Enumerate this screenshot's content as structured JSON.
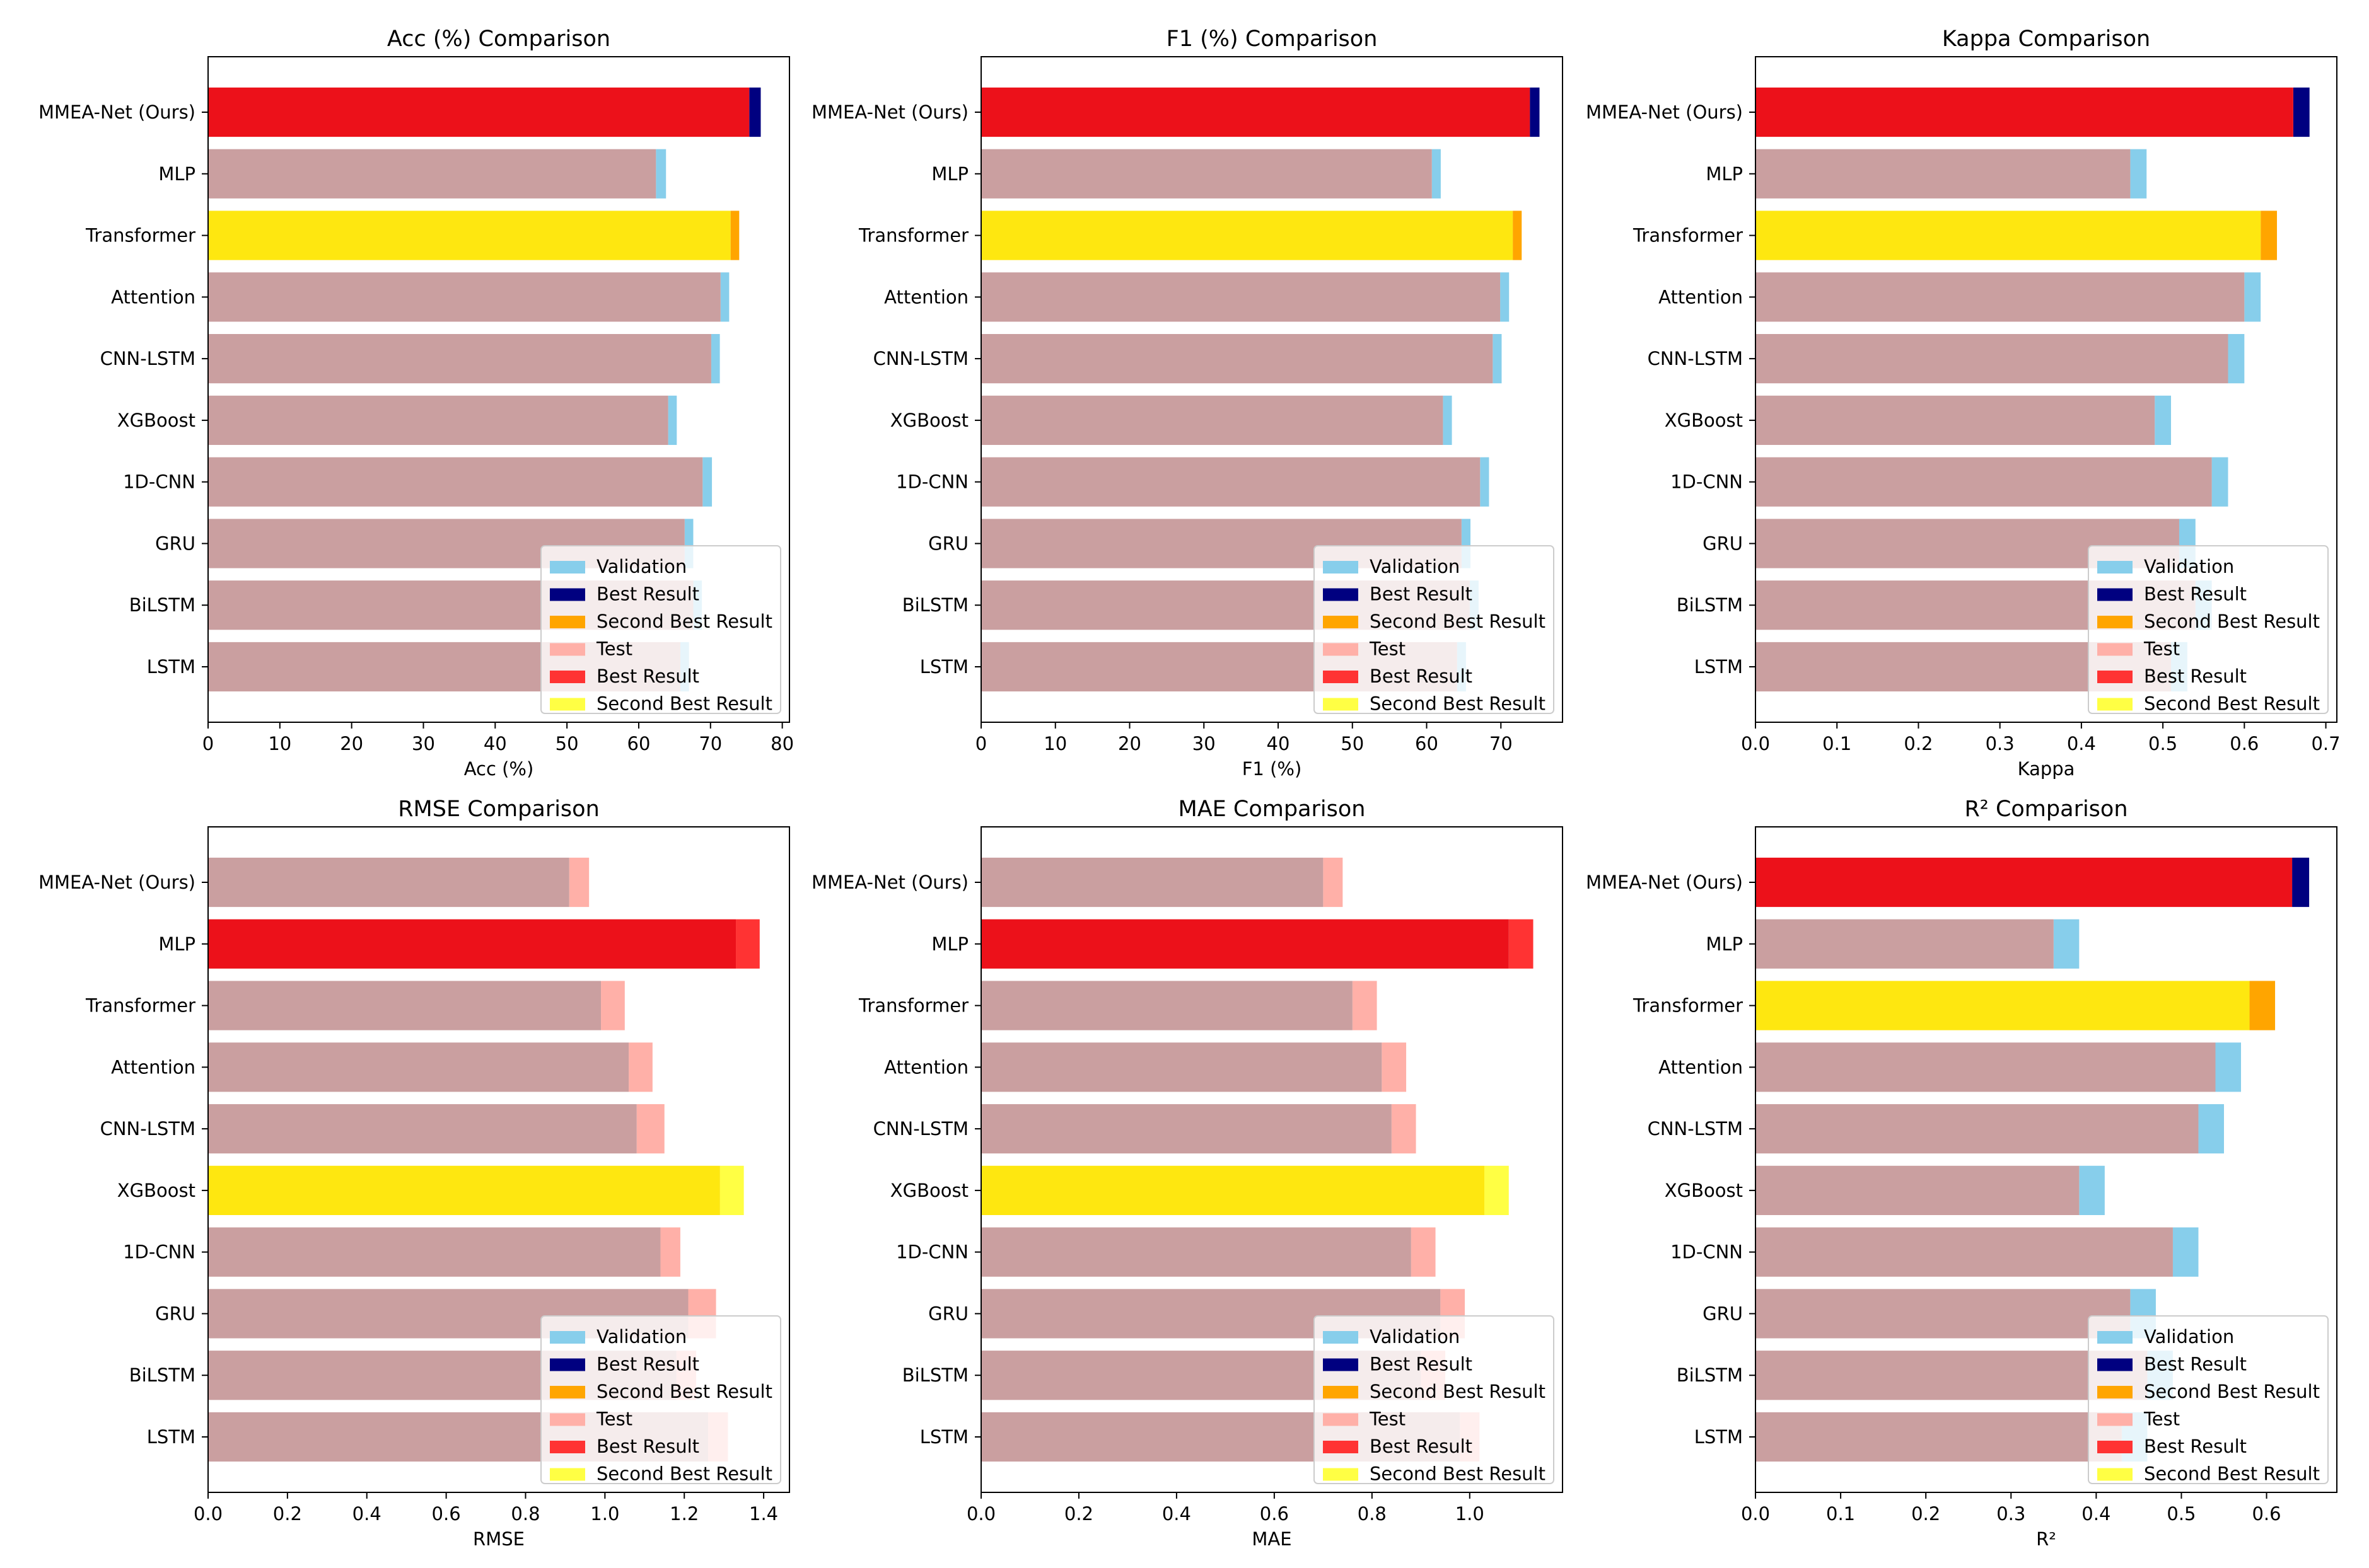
{
  "colors": {
    "validation": "#87CEEB",
    "val_best": "#000080",
    "val_second": "#FFA500",
    "test": "#FFB0A8",
    "test_best": "#FF3333",
    "test_second": "#FFFF44",
    "base": "#CA9FA0",
    "best_mix": "#EC111A",
    "second_mix": "#FEE710"
  },
  "legend": {
    "entries": [
      "Validation",
      "Best Result",
      "Second Best Result",
      "Test",
      "Best Result",
      "Second Best Result"
    ]
  },
  "chart_data": [
    {
      "type": "bar",
      "orientation": "horizontal",
      "title": "Acc (%) Comparison",
      "xlabel": "Acc (%)",
      "xlim": [
        0,
        81
      ],
      "xticks": [
        "0",
        "10",
        "20",
        "30",
        "40",
        "50",
        "60",
        "70",
        "80"
      ],
      "xtick_values": [
        0,
        10,
        20,
        30,
        40,
        50,
        60,
        70,
        80
      ],
      "legend_position": "lower-right",
      "categories": [
        "MMEA-Net (Ours)",
        "MLP",
        "Transformer",
        "Attention",
        "CNN-LSTM",
        "XGBoost",
        "1D-CNN",
        "GRU",
        "BiLSTM",
        "LSTM"
      ],
      "series": [
        {
          "name": "Validation",
          "values": [
            77.0,
            63.8,
            74.0,
            72.6,
            71.3,
            65.3,
            70.2,
            67.6,
            68.8,
            67.0
          ],
          "highlight": [
            "best",
            "",
            "second",
            "",
            "",
            "",
            "",
            "",
            "",
            ""
          ]
        },
        {
          "name": "Test",
          "values": [
            75.4,
            62.4,
            72.8,
            71.4,
            70.1,
            64.1,
            68.9,
            66.4,
            67.6,
            65.8
          ],
          "highlight": [
            "best",
            "",
            "second",
            "",
            "",
            "",
            "",
            "",
            "",
            ""
          ]
        }
      ]
    },
    {
      "type": "bar",
      "orientation": "horizontal",
      "title": "F1 (%) Comparison",
      "xlabel": "F1 (%)",
      "xlim": [
        0,
        78.3
      ],
      "xticks": [
        "0",
        "10",
        "20",
        "30",
        "40",
        "50",
        "60",
        "70"
      ],
      "xtick_values": [
        0,
        10,
        20,
        30,
        40,
        50,
        60,
        70
      ],
      "legend_position": "lower-right",
      "categories": [
        "MMEA-Net (Ours)",
        "MLP",
        "Transformer",
        "Attention",
        "CNN-LSTM",
        "XGBoost",
        "1D-CNN",
        "GRU",
        "BiLSTM",
        "LSTM"
      ],
      "series": [
        {
          "name": "Validation",
          "values": [
            75.2,
            61.9,
            72.8,
            71.1,
            70.1,
            63.4,
            68.4,
            65.9,
            67.0,
            65.3
          ],
          "highlight": [
            "best",
            "",
            "second",
            "",
            "",
            "",
            "",
            "",
            "",
            ""
          ]
        },
        {
          "name": "Test",
          "values": [
            73.9,
            60.7,
            71.6,
            69.9,
            68.9,
            62.2,
            67.2,
            64.7,
            65.8,
            64.1
          ],
          "highlight": [
            "best",
            "",
            "second",
            "",
            "",
            "",
            "",
            "",
            "",
            ""
          ]
        }
      ]
    },
    {
      "type": "bar",
      "orientation": "horizontal",
      "title": "Kappa Comparison",
      "xlabel": "Kappa",
      "xlim": [
        0,
        0.7135
      ],
      "xticks": [
        "0.0",
        "0.1",
        "0.2",
        "0.3",
        "0.4",
        "0.5",
        "0.6",
        "0.7"
      ],
      "xtick_values": [
        0,
        0.1,
        0.2,
        0.3,
        0.4,
        0.5,
        0.6,
        0.7
      ],
      "legend_position": "lower-right",
      "categories": [
        "MMEA-Net (Ours)",
        "MLP",
        "Transformer",
        "Attention",
        "CNN-LSTM",
        "XGBoost",
        "1D-CNN",
        "GRU",
        "BiLSTM",
        "LSTM"
      ],
      "series": [
        {
          "name": "Validation",
          "values": [
            0.68,
            0.48,
            0.64,
            0.62,
            0.6,
            0.51,
            0.58,
            0.54,
            0.56,
            0.53
          ],
          "highlight": [
            "best",
            "",
            "second",
            "",
            "",
            "",
            "",
            "",
            "",
            ""
          ]
        },
        {
          "name": "Test",
          "values": [
            0.66,
            0.46,
            0.62,
            0.6,
            0.58,
            0.49,
            0.56,
            0.52,
            0.54,
            0.51
          ],
          "highlight": [
            "best",
            "",
            "second",
            "",
            "",
            "",
            "",
            "",
            "",
            ""
          ]
        }
      ]
    },
    {
      "type": "bar",
      "orientation": "horizontal",
      "title": "RMSE Comparison",
      "xlabel": "RMSE",
      "xlim": [
        0,
        1.465
      ],
      "xticks": [
        "0.0",
        "0.2",
        "0.4",
        "0.6",
        "0.8",
        "1.0",
        "1.2",
        "1.4"
      ],
      "xtick_values": [
        0,
        0.2,
        0.4,
        0.6,
        0.8,
        1.0,
        1.2,
        1.4
      ],
      "legend_position": "lower-right",
      "categories": [
        "MMEA-Net (Ours)",
        "MLP",
        "Transformer",
        "Attention",
        "CNN-LSTM",
        "XGBoost",
        "1D-CNN",
        "GRU",
        "BiLSTM",
        "LSTM"
      ],
      "series": [
        {
          "name": "Validation",
          "values": [
            0.91,
            1.33,
            0.99,
            1.06,
            1.08,
            1.29,
            1.14,
            1.21,
            1.18,
            1.26
          ],
          "highlight": [
            "",
            "best",
            "",
            "",
            "",
            "second",
            "",
            "",
            "",
            ""
          ]
        },
        {
          "name": "Test",
          "values": [
            0.96,
            1.39,
            1.05,
            1.12,
            1.15,
            1.35,
            1.19,
            1.28,
            1.23,
            1.31
          ],
          "highlight": [
            "",
            "best",
            "",
            "",
            "",
            "second",
            "",
            "",
            "",
            ""
          ]
        }
      ]
    },
    {
      "type": "bar",
      "orientation": "horizontal",
      "title": "MAE Comparison",
      "xlabel": "MAE",
      "xlim": [
        0,
        1.19
      ],
      "xticks": [
        "0.0",
        "0.2",
        "0.4",
        "0.6",
        "0.8",
        "1.0"
      ],
      "xtick_values": [
        0,
        0.2,
        0.4,
        0.6,
        0.8,
        1.0
      ],
      "legend_position": "lower-right",
      "categories": [
        "MMEA-Net (Ours)",
        "MLP",
        "Transformer",
        "Attention",
        "CNN-LSTM",
        "XGBoost",
        "1D-CNN",
        "GRU",
        "BiLSTM",
        "LSTM"
      ],
      "series": [
        {
          "name": "Validation",
          "values": [
            0.7,
            1.08,
            0.76,
            0.82,
            0.84,
            1.03,
            0.88,
            0.94,
            0.9,
            0.98
          ],
          "highlight": [
            "",
            "best",
            "",
            "",
            "",
            "second",
            "",
            "",
            "",
            ""
          ]
        },
        {
          "name": "Test",
          "values": [
            0.74,
            1.13,
            0.81,
            0.87,
            0.89,
            1.08,
            0.93,
            0.99,
            0.95,
            1.02
          ],
          "highlight": [
            "",
            "best",
            "",
            "",
            "",
            "second",
            "",
            "",
            "",
            ""
          ]
        }
      ]
    },
    {
      "type": "bar",
      "orientation": "horizontal",
      "title": "R² Comparison",
      "xlabel": "R²",
      "xlim": [
        0,
        0.6825
      ],
      "xticks": [
        "0.0",
        "0.1",
        "0.2",
        "0.3",
        "0.4",
        "0.5",
        "0.6"
      ],
      "xtick_values": [
        0,
        0.1,
        0.2,
        0.3,
        0.4,
        0.5,
        0.6
      ],
      "legend_position": "lower-right",
      "categories": [
        "MMEA-Net (Ours)",
        "MLP",
        "Transformer",
        "Attention",
        "CNN-LSTM",
        "XGBoost",
        "1D-CNN",
        "GRU",
        "BiLSTM",
        "LSTM"
      ],
      "series": [
        {
          "name": "Validation",
          "values": [
            0.65,
            0.38,
            0.61,
            0.57,
            0.55,
            0.41,
            0.52,
            0.47,
            0.49,
            0.46
          ],
          "highlight": [
            "best",
            "",
            "second",
            "",
            "",
            "",
            "",
            "",
            "",
            ""
          ]
        },
        {
          "name": "Test",
          "values": [
            0.63,
            0.35,
            0.58,
            0.54,
            0.52,
            0.38,
            0.49,
            0.44,
            0.46,
            0.43
          ],
          "highlight": [
            "best",
            "",
            "second",
            "",
            "",
            "",
            "",
            "",
            "",
            ""
          ]
        }
      ]
    }
  ]
}
